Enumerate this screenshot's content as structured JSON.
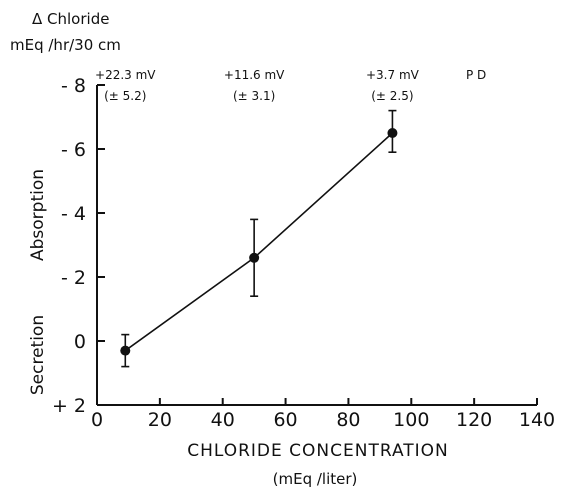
{
  "chart_data": {
    "type": "scatter",
    "y_title_line1": "Δ Chloride",
    "y_title_line2": "mEq /hr/30 cm",
    "xlabel_line1": "CHLORIDE CONCENTRATION",
    "xlabel_line2": "(mEq /liter)",
    "y_region_labels": {
      "upper": "Absorption",
      "lower": "Secretion"
    },
    "xlim": [
      0,
      140
    ],
    "ylim": [
      2,
      -8
    ],
    "x_ticks": [
      0,
      20,
      40,
      60,
      80,
      100,
      120,
      140
    ],
    "x_tick_labels": [
      "0",
      "20",
      "40",
      "60",
      "80",
      "100",
      "120",
      "140"
    ],
    "y_ticks": [
      -8,
      -6,
      -4,
      -2,
      0,
      2
    ],
    "y_tick_labels": [
      "- 8",
      "- 6",
      "- 4",
      "- 2",
      "0",
      "+ 2"
    ],
    "line_connects_points": true,
    "points": [
      {
        "x": 9,
        "y": 0.3,
        "err_low": -0.2,
        "err_high": 0.8
      },
      {
        "x": 50,
        "y": -2.6,
        "err_low": -3.8,
        "err_high": -1.4
      },
      {
        "x": 94,
        "y": -6.5,
        "err_low": -7.2,
        "err_high": -5.9
      }
    ],
    "pd_annotations": [
      {
        "x": 9,
        "line1": "+22.3 mV",
        "line2": "(± 5.2)"
      },
      {
        "x": 50,
        "line1": "+11.6 mV",
        "line2": "(± 3.1)"
      },
      {
        "x": 94,
        "line1": "+3.7 mV",
        "line2": "(± 2.5)"
      }
    ],
    "pd_label": "P D",
    "pd_label_x": 118,
    "colors": {
      "ink": "#111111",
      "background": "#ffffff"
    }
  }
}
